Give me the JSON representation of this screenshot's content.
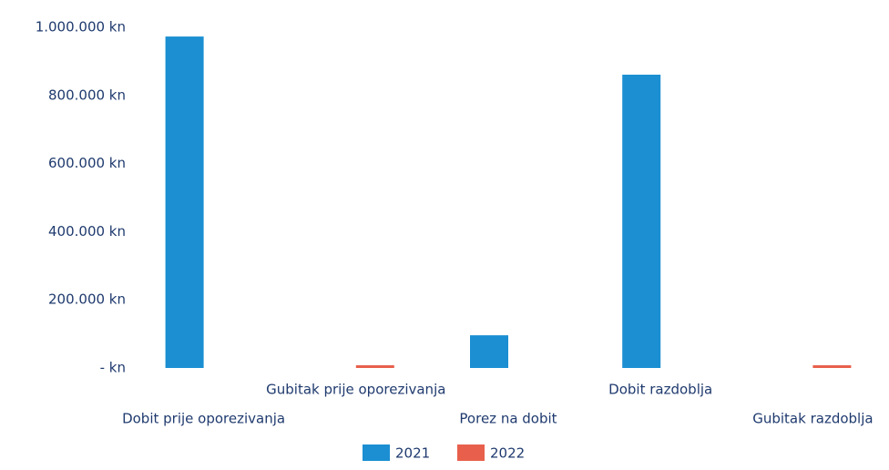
{
  "chart_data": {
    "type": "bar",
    "categories": [
      "Dobit prije oporezivanja",
      "Gubitak prije oporezivanja",
      "Porez na dobit",
      "Dobit razdoblja",
      "Gubitak razdoblja"
    ],
    "series": [
      {
        "name": "2021",
        "color": "#1b8fd2",
        "values": [
          973000,
          null,
          96000,
          861000,
          null
        ]
      },
      {
        "name": "2022",
        "color": "#e8604c",
        "values": [
          null,
          8000,
          null,
          null,
          8000
        ]
      }
    ],
    "ylim": [
      0,
      1000000
    ],
    "yticks": [
      {
        "value": 0,
        "label": "- kn"
      },
      {
        "value": 200000,
        "label": "200.000 kn"
      },
      {
        "value": 400000,
        "label": "400.000 kn"
      },
      {
        "value": 600000,
        "label": "600.000 kn"
      },
      {
        "value": 800000,
        "label": "800.000 kn"
      },
      {
        "value": 1000000,
        "label": "1.000.000 kn"
      }
    ],
    "legend": "bottom"
  }
}
